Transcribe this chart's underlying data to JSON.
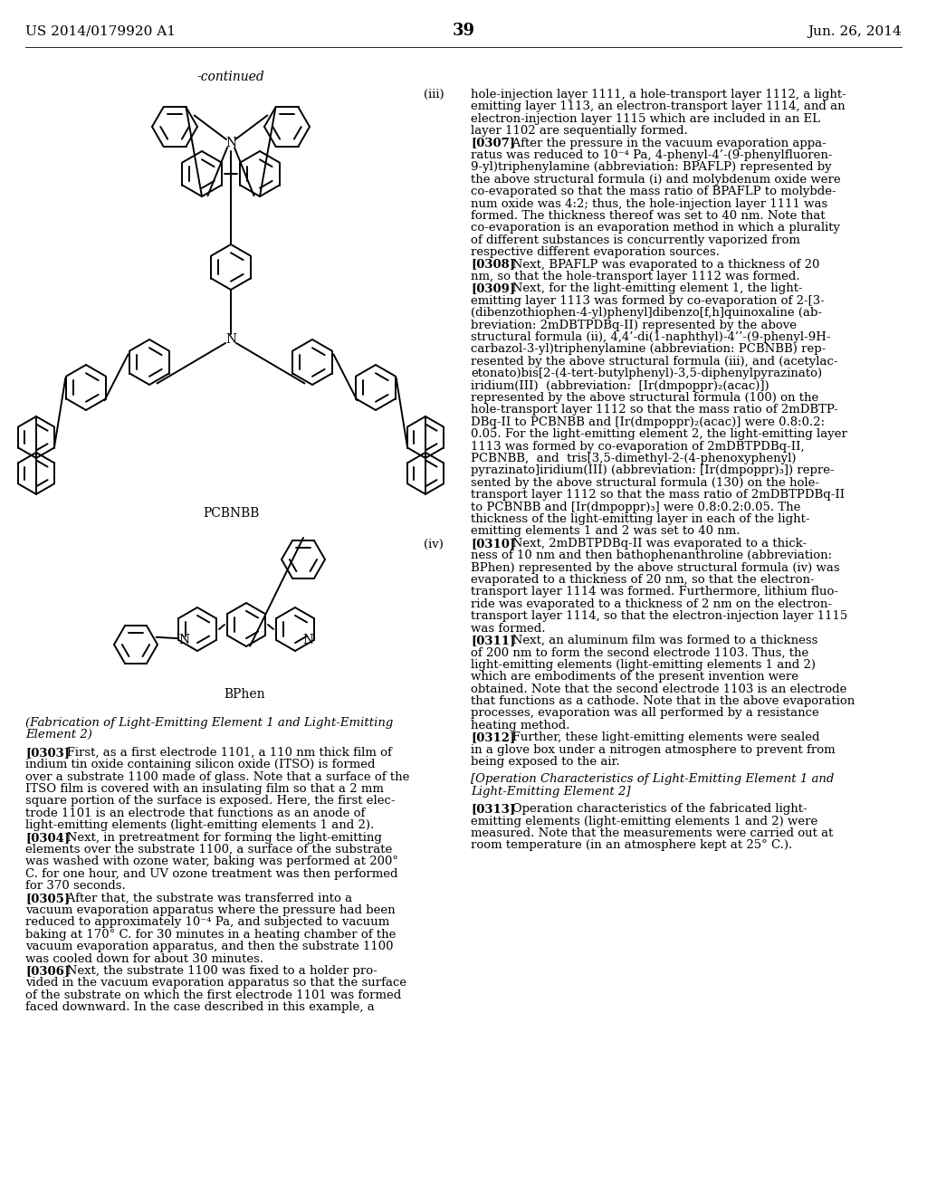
{
  "bg_color": "#ffffff",
  "header_left": "US 2014/0179920 A1",
  "header_right": "Jun. 26, 2014",
  "page_number": "39",
  "continued_label": "-continued",
  "label_iii": "(iii)",
  "label_iv": "(iv)",
  "molecule1_name": "PCBNBB",
  "molecule2_name": "BPhen",
  "right_col_lines": [
    "hole-injection layer 1111, a hole-transport layer 1112, a light-",
    "emitting layer 1113, an electron-transport layer 1114, and an",
    "electron-injection layer 1115 which are included in an EL",
    "layer 1102 are sequentially formed.",
    "[0307]   After the pressure in the vacuum evaporation appa-",
    "ratus was reduced to 10⁻⁴ Pa, 4-phenyl-4’-(9-phenylfluoren-",
    "9-yl)triphenylamine (abbreviation: BPAFLP) represented by",
    "the above structural formula (i) and molybdenum oxide were",
    "co-evaporated so that the mass ratio of BPAFLP to molybde-",
    "num oxide was 4:2; thus, the hole-injection layer 1111 was",
    "formed. The thickness thereof was set to 40 nm. Note that",
    "co-evaporation is an evaporation method in which a plurality",
    "of different substances is concurrently vaporized from",
    "respective different evaporation sources.",
    "[0308]   Next, BPAFLP was evaporated to a thickness of 20",
    "nm, so that the hole-transport layer 1112 was formed.",
    "[0309]   Next, for the light-emitting element 1, the light-",
    "emitting layer 1113 was formed by co-evaporation of 2-[3-",
    "(dibenzothiophen-4-yl)phenyl]dibenzo[f,h]quinoxaline (ab-",
    "breviation: 2mDBTPDBq-II) represented by the above",
    "structural formula (ii), 4,4’-di(1-naphthyl)-4’’-(9-phenyl-9H-",
    "carbazol-3-yl)triphenylamine (abbreviation: PCBNBB) rep-",
    "resented by the above structural formula (iii), and (acetylac-",
    "etonato)bis[2-(4-tert-butylphenyl)-3,5-diphenylpyrazinato)",
    "iridium(III)  (abbreviation:  [Ir(dmpoppr)₂(acac)])",
    "represented by the above structural formula (100) on the",
    "hole-transport layer 1112 so that the mass ratio of 2mDBTP-",
    "DBq-II to PCBNBB and [Ir(dmpoppr)₂(acac)] were 0.8:0.2:",
    "0.05. For the light-emitting element 2, the light-emitting layer",
    "1113 was formed by co-evaporation of 2mDBTPDBq-II,",
    "PCBNBB,  and  tris[3,5-dimethyl-2-(4-phenoxyphenyl)",
    "pyrazinato]iridium(III) (abbreviation: [Ir(dmpoppr)₃]) repre-",
    "sented by the above structural formula (130) on the hole-",
    "transport layer 1112 so that the mass ratio of 2mDBTPDBq-II",
    "to PCBNBB and [Ir(dmpoppr)₃] were 0.8:0.2:0.05. The",
    "thickness of the light-emitting layer in each of the light-",
    "emitting elements 1 and 2 was set to 40 nm.",
    "[0310]   Next, 2mDBTPDBq-II was evaporated to a thick-",
    "ness of 10 nm and then bathophenanthroline (abbreviation:",
    "BPhen) represented by the above structural formula (iv) was",
    "evaporated to a thickness of 20 nm, so that the electron-",
    "transport layer 1114 was formed. Furthermore, lithium fluo-",
    "ride was evaporated to a thickness of 2 nm on the electron-",
    "transport layer 1114, so that the electron-injection layer 1115",
    "was formed.",
    "[0311]   Next, an aluminum film was formed to a thickness",
    "of 200 nm to form the second electrode 1103. Thus, the",
    "light-emitting elements (light-emitting elements 1 and 2)",
    "which are embodiments of the present invention were",
    "obtained. Note that the second electrode 1103 is an electrode",
    "that functions as a cathode. Note that in the above evaporation",
    "processes, evaporation was all performed by a resistance",
    "heating method.",
    "[0312]   Further, these light-emitting elements were sealed",
    "in a glove box under a nitrogen atmosphere to prevent from",
    "being exposed to the air.",
    "",
    "[Operation Characteristics of Light-Emitting Element 1 and",
    "Light-Emitting Element 2]",
    "",
    "[0313]   Operation characteristics of the fabricated light-",
    "emitting elements (light-emitting elements 1 and 2) were",
    "measured. Note that the measurements were carried out at",
    "room temperature (in an atmosphere kept at 25° C.)."
  ],
  "left_col_lines": [
    "(Fabrication of Light-Emitting Element 1 and Light-Emitting",
    "Element 2)",
    "",
    "[0303]   First, as a first electrode 1101, a 110 nm thick film of",
    "indium tin oxide containing silicon oxide (ITSO) is formed",
    "over a substrate 1100 made of glass. Note that a surface of the",
    "ITSO film is covered with an insulating film so that a 2 mm",
    "square portion of the surface is exposed. Here, the first elec-",
    "trode 1101 is an electrode that functions as an anode of",
    "light-emitting elements (light-emitting elements 1 and 2).",
    "[0304]   Next, in pretreatment for forming the light-emitting",
    "elements over the substrate 1100, a surface of the substrate",
    "was washed with ozone water, baking was performed at 200°",
    "C. for one hour, and UV ozone treatment was then performed",
    "for 370 seconds.",
    "[0305]   After that, the substrate was transferred into a",
    "vacuum evaporation apparatus where the pressure had been",
    "reduced to approximately 10⁻⁴ Pa, and subjected to vacuum",
    "baking at 170° C. for 30 minutes in a heating chamber of the",
    "vacuum evaporation apparatus, and then the substrate 1100",
    "was cooled down for about 30 minutes.",
    "[0306]   Next, the substrate 1100 was fixed to a holder pro-",
    "vided in the vacuum evaporation apparatus so that the surface",
    "of the substrate on which the first electrode 1101 was formed",
    "faced downward. In the case described in this example, a"
  ],
  "bold_starts": [
    "[0303]",
    "[0304]",
    "[0305]",
    "[0306]",
    "[0307]",
    "[0308]",
    "[0309]",
    "[0310]",
    "[0311]",
    "[0312]",
    "[0313]"
  ]
}
